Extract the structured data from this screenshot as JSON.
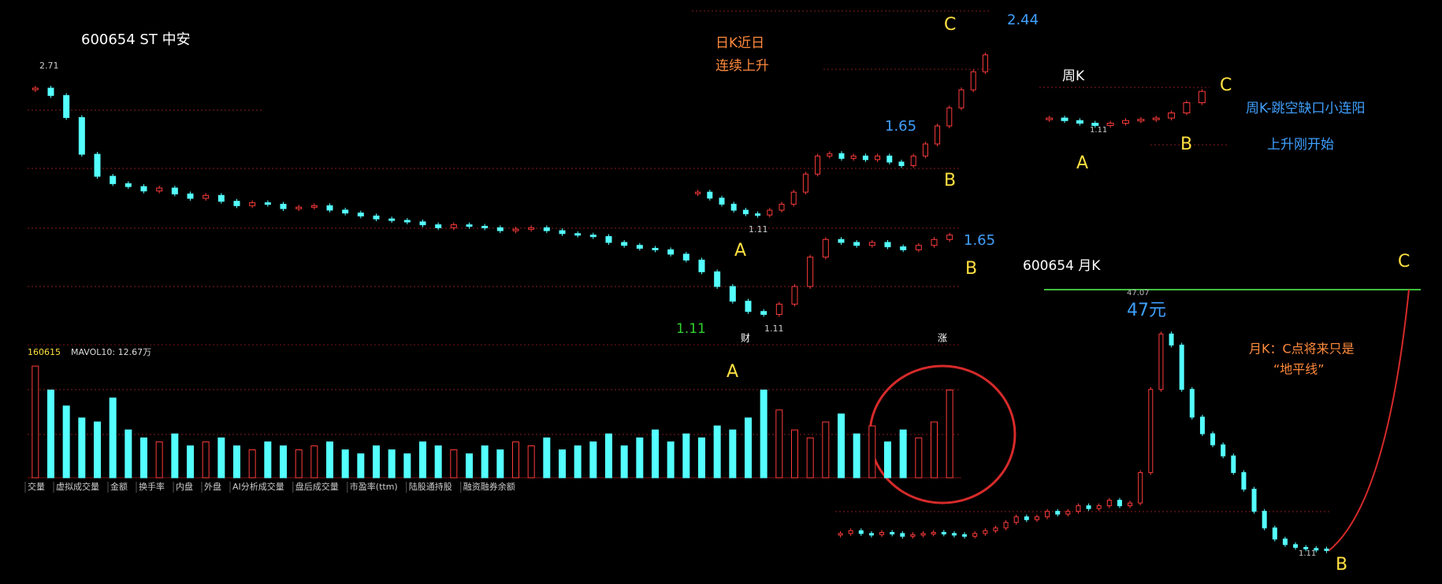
{
  "header": {
    "title": "600654  ST  中安"
  },
  "daily_chart": {
    "high": 2.71,
    "low": 1.11,
    "low_label_green": "1.11",
    "ylim": [
      1.0,
      2.8
    ],
    "closes": [
      2.65,
      2.6,
      2.45,
      2.2,
      2.05,
      2.0,
      1.98,
      1.95,
      1.97,
      1.93,
      1.9,
      1.92,
      1.88,
      1.85,
      1.87,
      1.86,
      1.83,
      1.84,
      1.85,
      1.82,
      1.8,
      1.78,
      1.76,
      1.75,
      1.74,
      1.72,
      1.7,
      1.72,
      1.71,
      1.7,
      1.68,
      1.69,
      1.7,
      1.68,
      1.66,
      1.65,
      1.64,
      1.6,
      1.58,
      1.56,
      1.55,
      1.52,
      1.48,
      1.4,
      1.3,
      1.2,
      1.13,
      1.11,
      1.18,
      1.3,
      1.5,
      1.62,
      1.6,
      1.58,
      1.6,
      1.57,
      1.55,
      1.58,
      1.62,
      1.65
    ],
    "marker_left": "财",
    "marker_right": "涨",
    "label_b_price": "1.65",
    "label_a": "A",
    "label_b": "B"
  },
  "volume": {
    "code": "160615",
    "mavol": "MAVOL10: 12.67万",
    "ylim": [
      0,
      30
    ],
    "values": [
      28,
      22,
      18,
      15,
      14,
      20,
      12,
      10,
      9,
      11,
      8,
      9,
      10,
      8,
      7,
      9,
      8,
      7,
      8,
      9,
      7,
      6,
      8,
      7,
      6,
      9,
      8,
      7,
      6,
      8,
      7,
      9,
      8,
      10,
      7,
      8,
      9,
      11,
      8,
      10,
      12,
      9,
      11,
      10,
      13,
      12,
      15,
      22,
      17,
      12,
      10,
      14,
      16,
      11,
      13,
      9,
      12,
      10,
      14,
      22
    ]
  },
  "tabs": [
    "交量",
    "虚拟成交量",
    "金额",
    "换手率",
    "内盘",
    "外盘",
    "AI分析成交量",
    "盘后成交量",
    "市盈率(ttm)",
    "陆股通持股",
    "融资融券余额"
  ],
  "daily_inset": {
    "note_line1": "日K近日",
    "note_line2": "连续上升",
    "high": 2.44,
    "mid_label": "1.65",
    "low": 1.11,
    "ylim": [
      1.0,
      2.7
    ],
    "closes": [
      1.3,
      1.25,
      1.2,
      1.15,
      1.12,
      1.11,
      1.15,
      1.2,
      1.3,
      1.45,
      1.6,
      1.62,
      1.58,
      1.6,
      1.57,
      1.6,
      1.55,
      1.52,
      1.6,
      1.7,
      1.85,
      2.0,
      2.15,
      2.3,
      2.44
    ],
    "label_a": "A",
    "label_b": "B",
    "label_c": "C"
  },
  "weekly_inset": {
    "title": "周K",
    "note_line1": "周K-跳空缺口小连阳",
    "note_line2": "上升刚开始",
    "low": 1.11,
    "ylim": [
      1.0,
      2.6
    ],
    "closes": [
      1.4,
      1.3,
      1.2,
      1.11,
      1.2,
      1.3,
      1.35,
      1.4,
      1.6,
      2.0,
      2.44
    ],
    "label_a": "A",
    "label_b": "B",
    "label_c": "C"
  },
  "monthly_inset": {
    "title": "600654  月K",
    "high": 47.07,
    "high_note": "47元",
    "note_line1": "月K：C点将来只是",
    "note_line2": "“地平线”",
    "low": 1.11,
    "ylim": [
      0,
      48
    ],
    "closes": [
      4,
      4.5,
      4,
      3.8,
      4.2,
      4,
      3.5,
      3.8,
      4,
      4.2,
      4,
      3.8,
      3.5,
      4,
      4.5,
      5,
      6,
      7,
      6.5,
      7,
      8,
      7.5,
      8,
      9,
      8.5,
      9,
      10,
      9,
      9.5,
      15,
      30,
      40,
      38,
      30,
      25,
      22,
      20,
      18,
      15,
      12,
      8,
      5,
      3,
      2,
      1.5,
      1.3,
      1.2,
      1.11
    ],
    "label_b": "B",
    "label_c": "C"
  }
}
